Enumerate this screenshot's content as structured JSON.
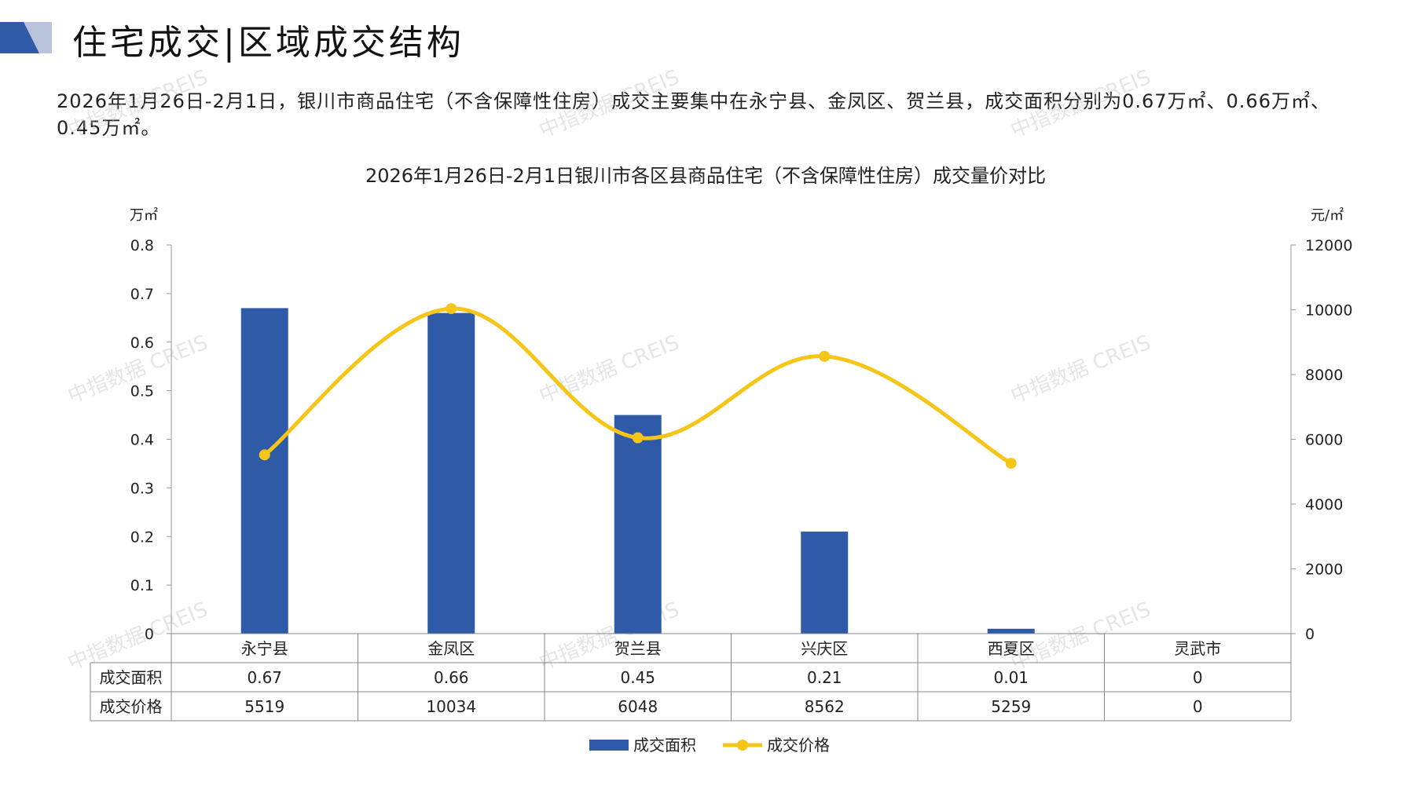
{
  "header": {
    "title": "住宅成交|区域成交结构"
  },
  "summary_text": "2026年1月26日-2月1日，银川市商品住宅（不含保障性住房）成交主要集中在永宁县、金凤区、贺兰县，成交面积分别为0.67万㎡、0.66万㎡、0.45万㎡。",
  "watermark_text": "中指数据 CREIS",
  "colors": {
    "bar": "#2E5AA7",
    "line": "#F5C518",
    "logo_dark": "#2E5AA7",
    "logo_light": "#B9C4DA"
  },
  "chart_data": {
    "type": "bar",
    "title": "2026年1月26日-2月1日银川市各区县商品住宅（不含保障性住房）成交量价对比",
    "categories": [
      "永宁县",
      "金凤区",
      "贺兰县",
      "兴庆区",
      "西夏区",
      "灵武市"
    ],
    "y_left_unit": "万㎡",
    "y_right_unit": "元/㎡",
    "ylim_left": [
      0,
      0.8
    ],
    "yticks_left": [
      "0.8",
      "0.7",
      "0.6",
      "0.5",
      "0.4",
      "0.3",
      "0.2",
      "0.1",
      "0"
    ],
    "ylim_right": [
      0,
      12000
    ],
    "yticks_right": [
      "12000",
      "10000",
      "8000",
      "6000",
      "4000",
      "2000",
      "0"
    ],
    "series": [
      {
        "name": "成交面积",
        "type": "bar",
        "axis": "left",
        "values": [
          0.67,
          0.66,
          0.45,
          0.21,
          0.01,
          0
        ],
        "labels": [
          "0.67",
          "0.66",
          "0.45",
          "0.21",
          "0.01",
          "0"
        ]
      },
      {
        "name": "成交价格",
        "type": "line",
        "axis": "right",
        "values": [
          5519,
          10034,
          6048,
          8562,
          5259,
          0
        ],
        "labels": [
          "5519",
          "10034",
          "6048",
          "8562",
          "5259",
          "0"
        ]
      }
    ],
    "legend_position": "bottom",
    "grid": false
  }
}
